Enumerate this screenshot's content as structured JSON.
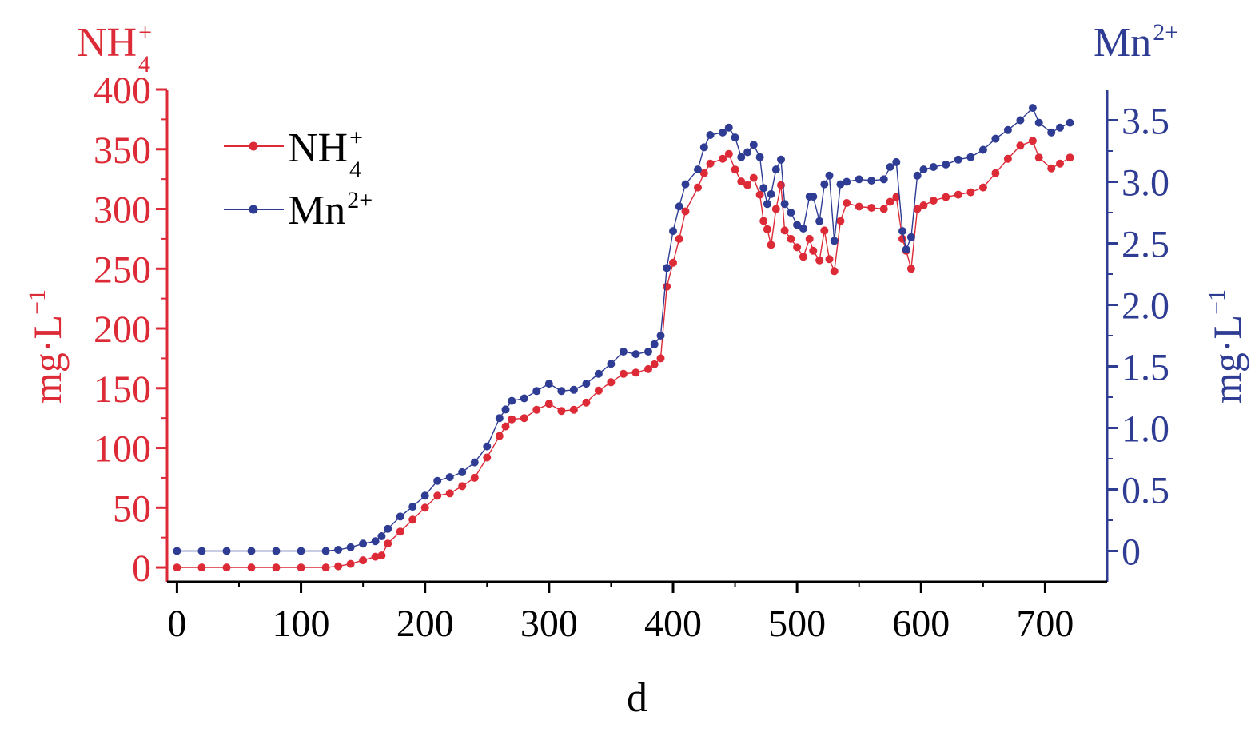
{
  "chart_data": {
    "type": "line",
    "xlabel": "d",
    "xlim": [
      -8,
      750
    ],
    "x_ticks": [
      "0",
      "100",
      "200",
      "300",
      "400",
      "500",
      "600",
      "700"
    ],
    "left_axis": {
      "title": "NH4+",
      "title_base": "NH",
      "title_sub": "4",
      "title_sup": "+",
      "unit_label": "mg·L",
      "unit_sup": "−1",
      "ylim": [
        -12,
        400
      ],
      "ticks": [
        "0",
        "50",
        "100",
        "150",
        "200",
        "250",
        "300",
        "350",
        "400"
      ],
      "color": "#dc2a37"
    },
    "right_axis": {
      "title": "Mn2+",
      "title_base": "Mn",
      "title_sup": "2+",
      "unit_label": "mg·L",
      "unit_sup": "−1",
      "ylim": [
        -0.25,
        3.75
      ],
      "ticks": [
        "0",
        "0.5",
        "1.0",
        "1.5",
        "2.0",
        "2.5",
        "3.0",
        "3.5"
      ],
      "color": "#2e3c93"
    },
    "legend_position": "top-left",
    "series": [
      {
        "name": "NH4+",
        "name_base": "NH",
        "name_sub": "4",
        "name_sup": "+",
        "axis": "left",
        "color": "#dc2a37",
        "points": [
          [
            0,
            0
          ],
          [
            20,
            0
          ],
          [
            40,
            0
          ],
          [
            60,
            0
          ],
          [
            80,
            0
          ],
          [
            100,
            0
          ],
          [
            120,
            0
          ],
          [
            130,
            1
          ],
          [
            140,
            3
          ],
          [
            150,
            6
          ],
          [
            160,
            9
          ],
          [
            165,
            10
          ],
          [
            170,
            20
          ],
          [
            180,
            30
          ],
          [
            190,
            40
          ],
          [
            200,
            50
          ],
          [
            210,
            60
          ],
          [
            220,
            62
          ],
          [
            230,
            68
          ],
          [
            240,
            75
          ],
          [
            250,
            92
          ],
          [
            260,
            110
          ],
          [
            265,
            118
          ],
          [
            270,
            124
          ],
          [
            280,
            125
          ],
          [
            290,
            132
          ],
          [
            300,
            137
          ],
          [
            310,
            131
          ],
          [
            320,
            132
          ],
          [
            330,
            138
          ],
          [
            340,
            148
          ],
          [
            350,
            155
          ],
          [
            360,
            162
          ],
          [
            370,
            163
          ],
          [
            380,
            166
          ],
          [
            385,
            170
          ],
          [
            390,
            175
          ],
          [
            395,
            235
          ],
          [
            400,
            255
          ],
          [
            405,
            275
          ],
          [
            410,
            298
          ],
          [
            420,
            318
          ],
          [
            425,
            330
          ],
          [
            430,
            338
          ],
          [
            440,
            342
          ],
          [
            445,
            346
          ],
          [
            450,
            333
          ],
          [
            455,
            323
          ],
          [
            460,
            320
          ],
          [
            465,
            326
          ],
          [
            470,
            312
          ],
          [
            473,
            290
          ],
          [
            476,
            283
          ],
          [
            479,
            270
          ],
          [
            483,
            300
          ],
          [
            487,
            320
          ],
          [
            490,
            282
          ],
          [
            495,
            275
          ],
          [
            500,
            268
          ],
          [
            505,
            260
          ],
          [
            510,
            275
          ],
          [
            513,
            265
          ],
          [
            518,
            257
          ],
          [
            522,
            282
          ],
          [
            526,
            258
          ],
          [
            530,
            248
          ],
          [
            535,
            290
          ],
          [
            540,
            305
          ],
          [
            550,
            302
          ],
          [
            560,
            301
          ],
          [
            570,
            300
          ],
          [
            575,
            306
          ],
          [
            580,
            310
          ],
          [
            585,
            275
          ],
          [
            588,
            265
          ],
          [
            592,
            250
          ],
          [
            597,
            300
          ],
          [
            602,
            303
          ],
          [
            610,
            307
          ],
          [
            620,
            310
          ],
          [
            630,
            312
          ],
          [
            640,
            314
          ],
          [
            650,
            318
          ],
          [
            660,
            330
          ],
          [
            670,
            342
          ],
          [
            680,
            353
          ],
          [
            690,
            357
          ],
          [
            695,
            343
          ],
          [
            705,
            334
          ],
          [
            712,
            338
          ],
          [
            720,
            343
          ]
        ]
      },
      {
        "name": "Mn2+",
        "name_base": "Mn",
        "name_sup": "2+",
        "axis": "right",
        "color": "#2e3c93",
        "points": [
          [
            0,
            0
          ],
          [
            20,
            0
          ],
          [
            40,
            0
          ],
          [
            60,
            0
          ],
          [
            80,
            0
          ],
          [
            100,
            0
          ],
          [
            120,
            0
          ],
          [
            130,
            0.01
          ],
          [
            140,
            0.03
          ],
          [
            150,
            0.06
          ],
          [
            160,
            0.08
          ],
          [
            165,
            0.12
          ],
          [
            170,
            0.18
          ],
          [
            180,
            0.28
          ],
          [
            190,
            0.36
          ],
          [
            200,
            0.45
          ],
          [
            210,
            0.57
          ],
          [
            220,
            0.6
          ],
          [
            230,
            0.64
          ],
          [
            240,
            0.72
          ],
          [
            250,
            0.85
          ],
          [
            260,
            1.08
          ],
          [
            265,
            1.15
          ],
          [
            270,
            1.22
          ],
          [
            280,
            1.24
          ],
          [
            290,
            1.3
          ],
          [
            300,
            1.36
          ],
          [
            310,
            1.3
          ],
          [
            320,
            1.31
          ],
          [
            330,
            1.36
          ],
          [
            340,
            1.44
          ],
          [
            350,
            1.52
          ],
          [
            360,
            1.62
          ],
          [
            370,
            1.6
          ],
          [
            380,
            1.62
          ],
          [
            385,
            1.68
          ],
          [
            390,
            1.75
          ],
          [
            395,
            2.3
          ],
          [
            400,
            2.6
          ],
          [
            405,
            2.8
          ],
          [
            410,
            2.98
          ],
          [
            420,
            3.1
          ],
          [
            425,
            3.28
          ],
          [
            430,
            3.38
          ],
          [
            440,
            3.4
          ],
          [
            445,
            3.44
          ],
          [
            450,
            3.36
          ],
          [
            455,
            3.2
          ],
          [
            460,
            3.24
          ],
          [
            465,
            3.3
          ],
          [
            470,
            3.2
          ],
          [
            473,
            2.95
          ],
          [
            476,
            2.82
          ],
          [
            479,
            2.9
          ],
          [
            483,
            3.1
          ],
          [
            487,
            3.18
          ],
          [
            490,
            2.82
          ],
          [
            495,
            2.75
          ],
          [
            500,
            2.65
          ],
          [
            505,
            2.62
          ],
          [
            510,
            2.88
          ],
          [
            513,
            2.88
          ],
          [
            518,
            2.68
          ],
          [
            522,
            2.98
          ],
          [
            526,
            3.05
          ],
          [
            530,
            2.52
          ],
          [
            535,
            2.98
          ],
          [
            540,
            3.0
          ],
          [
            550,
            3.02
          ],
          [
            560,
            3.01
          ],
          [
            570,
            3.02
          ],
          [
            575,
            3.12
          ],
          [
            580,
            3.16
          ],
          [
            585,
            2.6
          ],
          [
            588,
            2.45
          ],
          [
            592,
            2.55
          ],
          [
            597,
            3.05
          ],
          [
            602,
            3.1
          ],
          [
            610,
            3.12
          ],
          [
            620,
            3.14
          ],
          [
            630,
            3.18
          ],
          [
            640,
            3.2
          ],
          [
            650,
            3.26
          ],
          [
            660,
            3.35
          ],
          [
            670,
            3.42
          ],
          [
            680,
            3.5
          ],
          [
            690,
            3.6
          ],
          [
            695,
            3.48
          ],
          [
            705,
            3.4
          ],
          [
            712,
            3.44
          ],
          [
            720,
            3.48
          ]
        ]
      }
    ]
  }
}
